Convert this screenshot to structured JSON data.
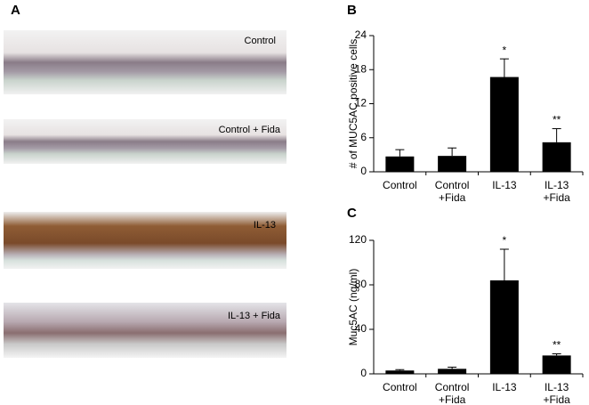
{
  "panel_a": {
    "label": "A",
    "images": [
      {
        "label": "Control"
      },
      {
        "label": "Control + Fida"
      },
      {
        "label": "IL-13"
      },
      {
        "label": "IL-13 + Fida"
      }
    ]
  },
  "chart_data": [
    {
      "type": "bar",
      "panel_label": "B",
      "y_label": "# of MUC5AC positive cells",
      "categories": [
        "Control",
        "Control\n+Fida",
        "IL-13",
        "IL-13\n+Fida"
      ],
      "values": [
        2.7,
        2.8,
        16.7,
        5.2
      ],
      "errors": [
        1.2,
        1.4,
        3.2,
        2.4
      ],
      "significance": [
        null,
        null,
        "*",
        "**"
      ],
      "color": "#000000",
      "ylim": [
        0,
        24
      ],
      "yticks": [
        0,
        6,
        12,
        18,
        24
      ]
    },
    {
      "type": "bar",
      "panel_label": "C",
      "y_label": "Muc5AC (ng/ml)",
      "categories": [
        "Control",
        "Control\n+Fida",
        "IL-13",
        "IL-13\n+Fida"
      ],
      "values": [
        3,
        4.5,
        84,
        16.5
      ],
      "errors": [
        0.8,
        1.5,
        28,
        1.5
      ],
      "significance": [
        null,
        null,
        "*",
        "**"
      ],
      "color": "#000000",
      "ylim": [
        0,
        120
      ],
      "yticks": [
        0,
        40,
        80,
        120
      ]
    }
  ]
}
